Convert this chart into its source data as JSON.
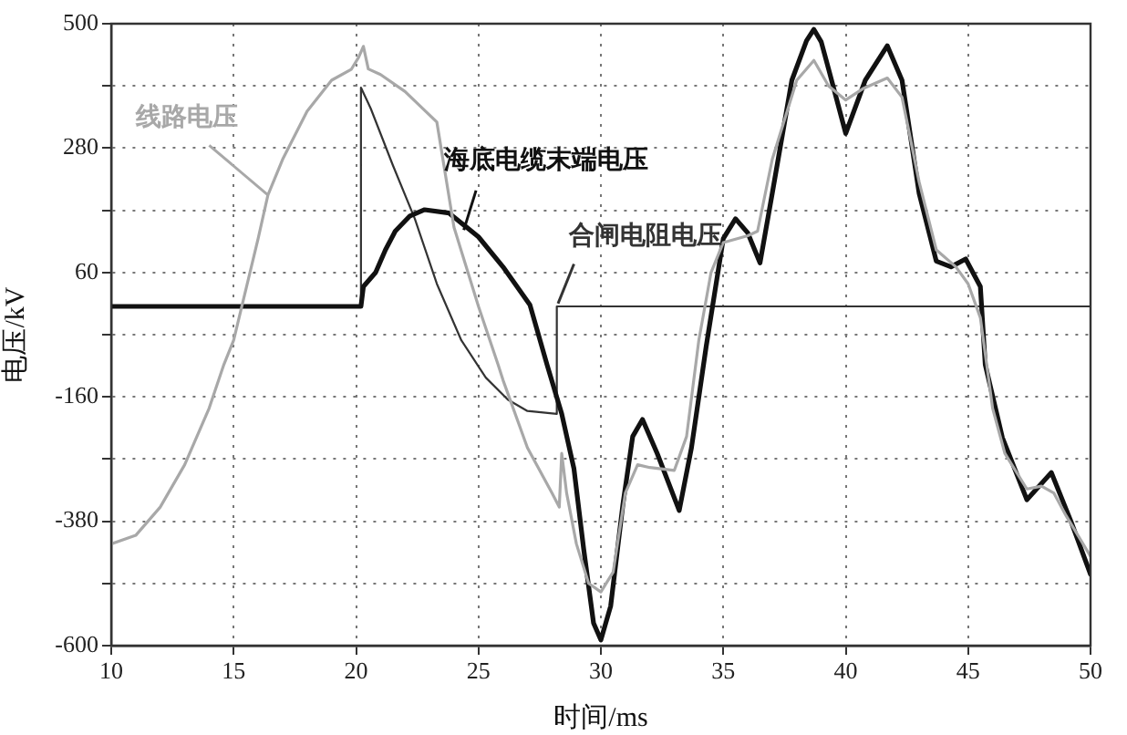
{
  "chart_data": {
    "type": "line",
    "xlabel": "时间/ms",
    "ylabel": "电压/kV",
    "xlim": [
      10,
      50
    ],
    "xticks": [
      10,
      15,
      20,
      25,
      30,
      35,
      40,
      45,
      50
    ],
    "ylim": [
      -600,
      500
    ],
    "yticks": [
      -600,
      {
        "value": -490,
        "label": null
      },
      -380,
      {
        "value": -270,
        "label": null
      },
      -160,
      {
        "value": -50,
        "label": null
      },
      60,
      {
        "value": 170,
        "label": null
      },
      280,
      {
        "value": 390,
        "label": null
      },
      500
    ],
    "grid": true,
    "legend": false,
    "marker": "none",
    "line_style": "solid",
    "series": [
      {
        "name": "线路电压",
        "color": "#a8a8a8",
        "x": [
          10,
          11,
          12,
          13,
          14,
          14.6,
          15,
          16,
          16.4,
          17,
          18,
          19,
          19.8,
          20.1,
          20.3,
          20.5,
          21,
          22,
          23.3,
          24,
          25,
          25.8,
          26,
          27,
          28,
          28.3,
          28.4,
          28.6,
          29,
          29.5,
          30,
          30.5,
          31,
          31.5,
          32,
          33,
          33.5,
          34,
          34.5,
          35,
          36,
          36.4,
          37,
          38,
          38.7,
          39.3,
          40,
          40.7,
          41.7,
          42.3,
          43,
          43.7,
          44.5,
          45,
          45.5,
          46,
          46.5,
          47.4,
          48,
          48.5,
          49,
          50
        ],
        "values": [
          -420,
          -405,
          -355,
          -280,
          -180,
          -103,
          -60,
          120,
          197,
          260,
          345,
          400,
          419,
          440,
          460,
          420,
          410,
          380,
          326,
          140,
          0,
          -103,
          -130,
          -250,
          -330,
          -355,
          -260,
          -330,
          -420,
          -490,
          -505,
          -470,
          -330,
          -280,
          -285,
          -290,
          -230,
          -60,
          60,
          113,
          125,
          133,
          260,
          400,
          435,
          390,
          365,
          385,
          404,
          370,
          220,
          100,
          70,
          40,
          -20,
          -180,
          -260,
          -323,
          -318,
          -330,
          -370,
          -442
        ]
      },
      {
        "name": "海底电缆末端电压",
        "color": "#111111",
        "x": [
          10,
          20.2,
          20.3,
          20.8,
          21.2,
          21.6,
          22.2,
          22.8,
          23.8,
          25,
          26,
          27.1,
          27.8,
          28.4,
          28.9,
          29.3,
          29.7,
          30,
          30.4,
          30.9,
          31.3,
          31.7,
          32.3,
          33.2,
          33.7,
          34.3,
          35,
          35.5,
          36,
          36.5,
          37,
          37.8,
          38.4,
          38.7,
          39.0,
          39.3,
          40,
          40.8,
          41.7,
          42.3,
          43,
          43.7,
          44.3,
          44.9,
          45.5,
          45.7,
          46.4,
          47.4,
          48.4,
          49.2,
          50
        ],
        "values": [
          0,
          0,
          35,
          60,
          100,
          133,
          160,
          171,
          165,
          123,
          70,
          3,
          -103,
          -190,
          -287,
          -430,
          -560,
          -590,
          -530,
          -350,
          -230,
          -200,
          -260,
          -361,
          -250,
          -71,
          120,
          155,
          130,
          77,
          200,
          400,
          470,
          490,
          468,
          420,
          306,
          400,
          461,
          400,
          200,
          80,
          70,
          84,
          35,
          -103,
          -232,
          -342,
          -294,
          -380,
          -474
        ]
      },
      {
        "name": "合闸电阻电压",
        "color": "#333333",
        "x": [
          10,
          20.2,
          20.2,
          20.6,
          21.5,
          22.4,
          23.3,
          24.3,
          25.3,
          26.2,
          27,
          28.2,
          28.2,
          50
        ],
        "values": [
          0,
          0,
          387,
          350,
          250,
          155,
          40,
          -60,
          -126,
          -165,
          -185,
          -190,
          0,
          0
        ]
      }
    ]
  }
}
